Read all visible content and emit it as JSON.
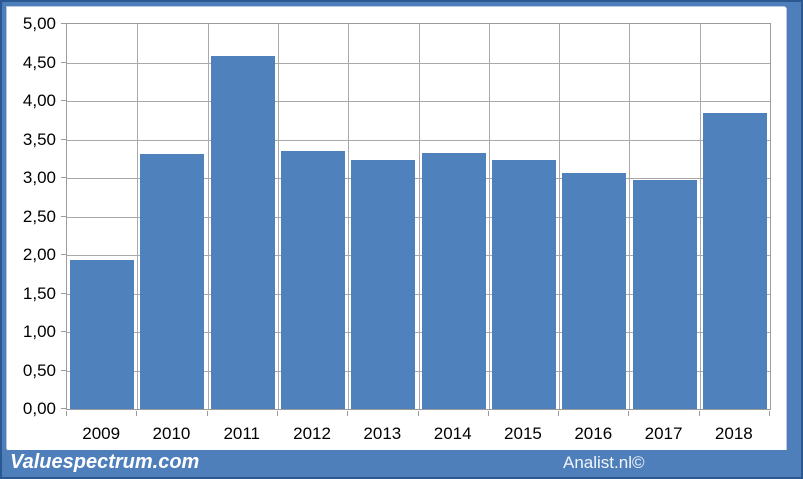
{
  "chart_data": {
    "type": "bar",
    "categories": [
      "2009",
      "2010",
      "2011",
      "2012",
      "2013",
      "2014",
      "2015",
      "2016",
      "2017",
      "2018"
    ],
    "values": [
      1.93,
      3.31,
      4.59,
      3.35,
      3.24,
      3.32,
      3.24,
      3.07,
      2.97,
      3.85
    ],
    "ylim": [
      0,
      5
    ],
    "ytick_values": [
      0,
      0.5,
      1,
      1.5,
      2,
      2.5,
      3,
      3.5,
      4,
      4.5,
      5
    ],
    "ytick_labels": [
      "0,00",
      "0,50",
      "1,00",
      "1,50",
      "2,00",
      "2,50",
      "3,00",
      "3,50",
      "4,00",
      "4,50",
      "5,00"
    ],
    "grid": true,
    "legend_position": "none",
    "bar_color": "#4f81bd"
  },
  "footer": {
    "brand": "Valuespectrum.com",
    "credit": "Analist.nl©"
  },
  "colors": {
    "bar": "#4f81bd",
    "frame": "#4e7fbb",
    "frame_border": "#2b5890",
    "frame_highlight": "#b9c9e0",
    "plot_border": "#9b9b9b",
    "gridline": "#a9a9a9",
    "tick_text": "#000000",
    "footer_text": "#ffffff"
  }
}
